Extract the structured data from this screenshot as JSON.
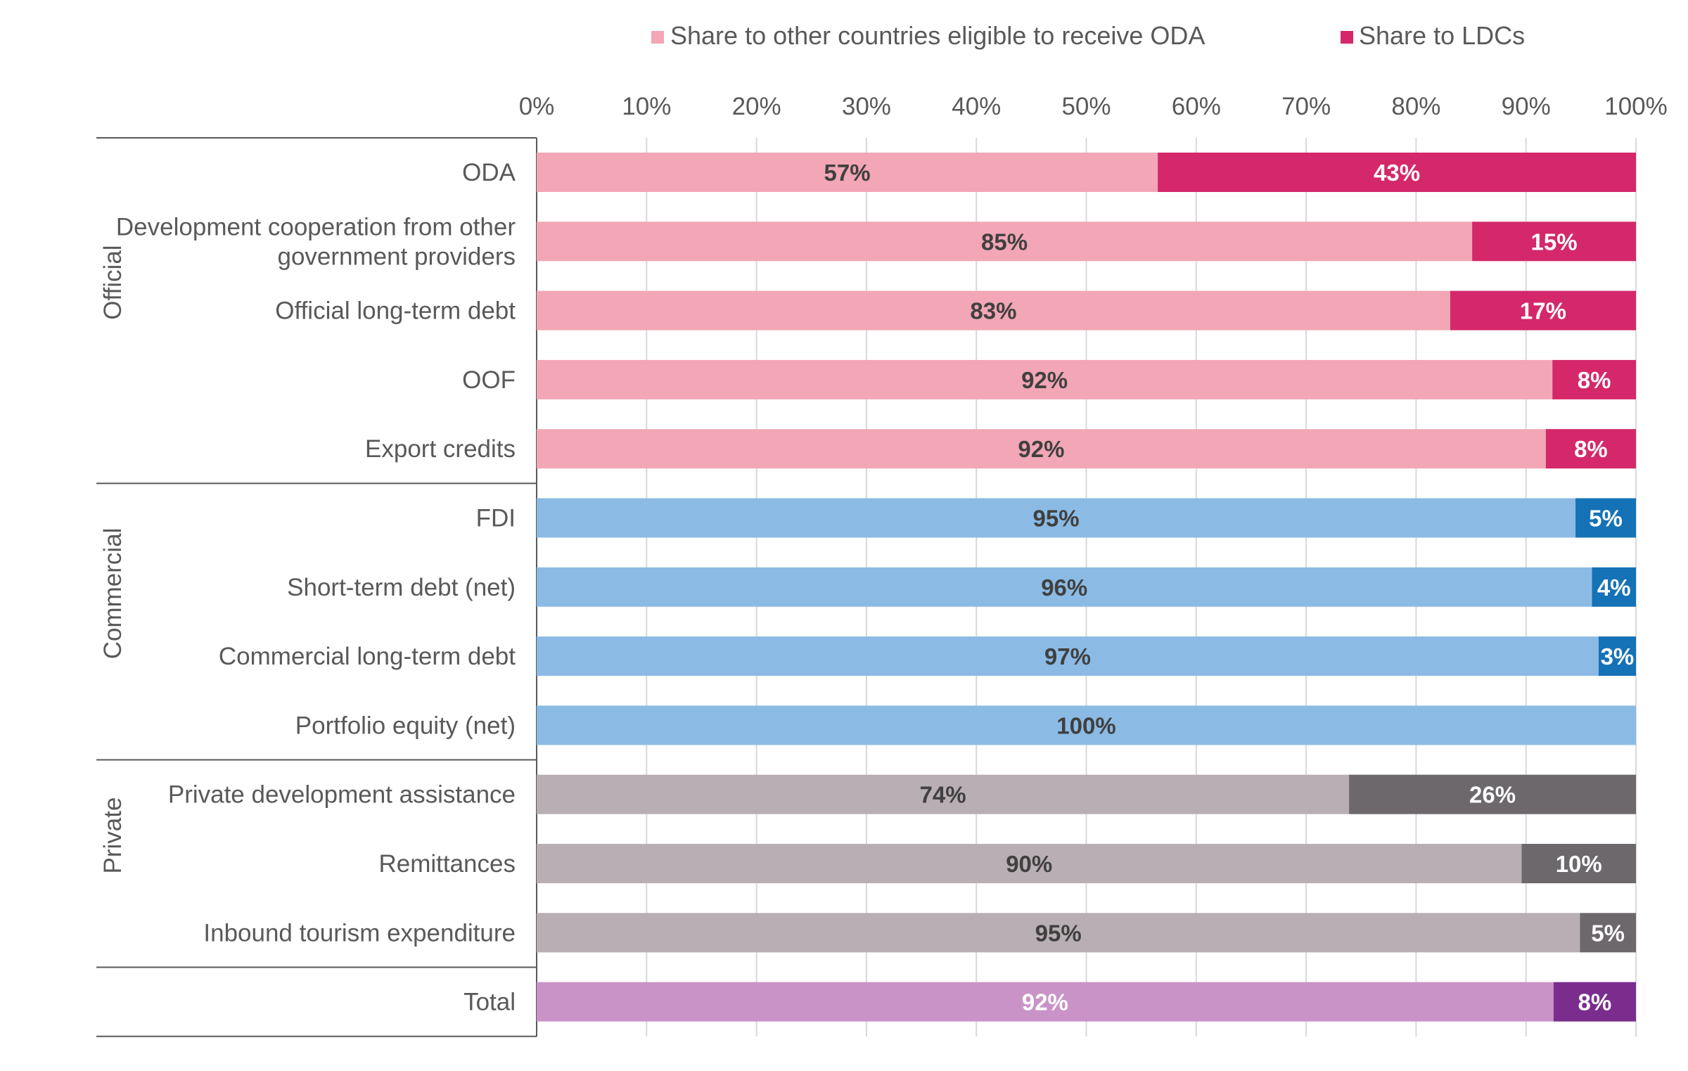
{
  "chart_data": {
    "type": "bar",
    "orientation": "horizontal",
    "stacked": true,
    "xlim": [
      0,
      100
    ],
    "grid": true,
    "legend_position": "top",
    "ticks": [
      "0%",
      "10%",
      "20%",
      "30%",
      "40%",
      "50%",
      "60%",
      "70%",
      "80%",
      "90%",
      "100%"
    ],
    "tick_values": [
      0,
      10,
      20,
      30,
      40,
      50,
      60,
      70,
      80,
      90,
      100
    ],
    "legend": [
      {
        "label": "Share to other countries eligible to receive ODA",
        "color": "#f2a6b6"
      },
      {
        "label": "Share to LDCs",
        "color": "#d4286a"
      }
    ],
    "groups": [
      {
        "name": "Official",
        "rows": 5
      },
      {
        "name": "Commercial",
        "rows": 4
      },
      {
        "name": "Private",
        "rows": 3
      },
      {
        "name": "",
        "rows": 1
      }
    ],
    "categories": [
      "ODA",
      "Development cooperation from other government providers",
      "Official long-term debt",
      "OOF",
      "Export credits",
      "FDI",
      "Short-term debt (net)",
      "Commercial long-term debt",
      "Portfolio equity (net)",
      "Private development assistance",
      "Remittances",
      "Inbound tourism expenditure",
      "Total"
    ],
    "series": [
      {
        "name": "Share to other countries eligible to receive ODA",
        "values": [
          56.5,
          85.1,
          83.1,
          92.4,
          91.8,
          94.5,
          96.0,
          96.6,
          100,
          73.9,
          89.6,
          94.9,
          92.5
        ],
        "labels": [
          "57%",
          "85%",
          "83%",
          "92%",
          "92%",
          "95%",
          "96%",
          "97%",
          "100%",
          "74%",
          "90%",
          "95%",
          "92%"
        ]
      },
      {
        "name": "Share to LDCs",
        "values": [
          43.5,
          14.9,
          16.9,
          7.6,
          8.2,
          5.5,
          4.0,
          3.4,
          0,
          26.1,
          10.4,
          5.1,
          7.5
        ],
        "labels": [
          "43%",
          "15%",
          "17%",
          "8%",
          "8%",
          "5%",
          "4%",
          "3%",
          "",
          "26%",
          "10%",
          "5%",
          "8%"
        ]
      }
    ],
    "colors": {
      "official_other": "#f2a6b6",
      "official_ldc": "#d4286a",
      "commercial_other": "#8bbbe5",
      "commercial_ldc": "#1572b6",
      "private_other": "#b8afb4",
      "private_ldc": "#6d686c",
      "total_other": "#c993c8",
      "total_ldc": "#7b2d8e",
      "label_on_light": "#404040",
      "label_on_dark": "#ffffff",
      "grid": "#d9d9d9",
      "axis_text": "#595959"
    }
  }
}
